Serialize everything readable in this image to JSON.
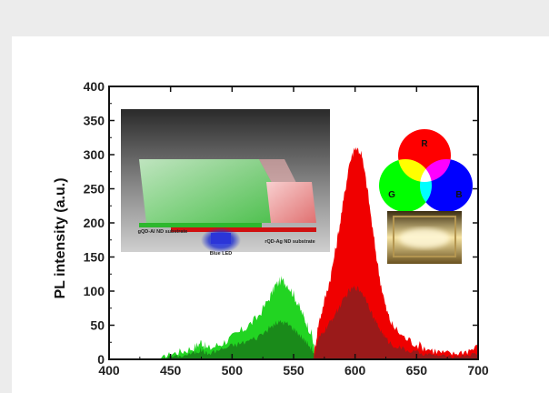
{
  "chart_data": {
    "type": "area",
    "ylabel": "PL intensity (a.u.)",
    "xlim": [
      400,
      700
    ],
    "ylim": [
      0,
      400
    ],
    "x_ticks": [
      400,
      450,
      500,
      550,
      600,
      650,
      700
    ],
    "y_ticks": [
      0,
      50,
      100,
      150,
      200,
      250,
      300,
      350,
      400
    ],
    "series": [
      {
        "color": "#22d422",
        "dark_color": "#1a8a1a",
        "x": [
          440,
          450,
          460,
          470,
          475,
          480,
          490,
          500,
          510,
          520,
          530,
          535,
          540,
          545,
          550,
          555,
          560,
          565,
          568
        ],
        "y": [
          0,
          8,
          12,
          18,
          26,
          15,
          22,
          32,
          45,
          60,
          88,
          108,
          116,
          110,
          95,
          75,
          55,
          35,
          0
        ],
        "dark_y": [
          0,
          4,
          5,
          10,
          14,
          8,
          14,
          20,
          25,
          32,
          45,
          52,
          55,
          52,
          45,
          36,
          26,
          15,
          0
        ]
      },
      {
        "color": "#f00000",
        "dark_color": "#9a1a1a",
        "x": [
          566,
          570,
          575,
          580,
          585,
          590,
          595,
          600,
          605,
          610,
          615,
          620,
          625,
          630,
          640,
          650,
          660,
          670,
          680,
          690,
          700
        ],
        "y": [
          0,
          50,
          85,
          120,
          170,
          225,
          285,
          312,
          302,
          250,
          180,
          120,
          75,
          50,
          32,
          22,
          15,
          10,
          8,
          12,
          18
        ],
        "dark_y": [
          0,
          28,
          42,
          55,
          70,
          85,
          100,
          106,
          100,
          85,
          60,
          45,
          30,
          22,
          14,
          10,
          7,
          5,
          4,
          6,
          8
        ]
      }
    ],
    "inset_labels": {
      "left_substrate": "gQD-Al ND substrate",
      "right_substrate": "rQD-Ag ND substrate",
      "led": "Blue LED"
    },
    "venn_labels": [
      "R",
      "G",
      "B"
    ]
  },
  "colors": {
    "red": "#ff0000",
    "green": "#00ff00",
    "blue": "#0000ff"
  }
}
